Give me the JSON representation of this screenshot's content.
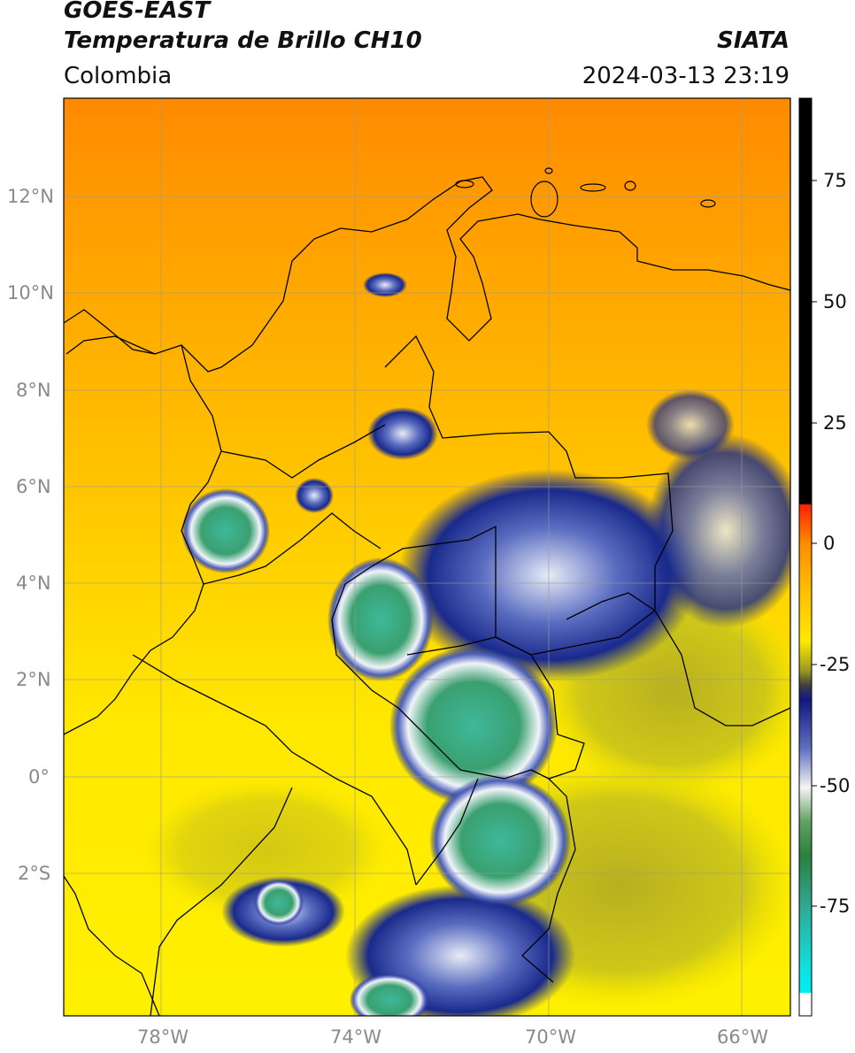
{
  "header": {
    "satellite": "GOES-EAST",
    "product": "Temperatura de Brillo CH10",
    "region": "Colombia",
    "agency": "SIATA",
    "datetime": "2024-03-13 23:19"
  },
  "map": {
    "lat_ticks": [
      "12°N",
      "10°N",
      "8°N",
      "6°N",
      "4°N",
      "2°N",
      "0°",
      "2°S"
    ],
    "lon_ticks": [
      "78°W",
      "74°W",
      "70°W",
      "66°W"
    ],
    "extent": {
      "lon_min": -80.0,
      "lon_max": -65.0,
      "lat_min": -5.0,
      "lat_max": 14.0
    },
    "colors": {
      "warm_top": "#ff8c00",
      "mid": "#ffc400",
      "low": "#ffe800",
      "cloud_blue": "#1a2a8c",
      "cloud_white": "#f0f4f8",
      "cloud_green": "#3aa070",
      "border": "#000000",
      "grid": "#999999"
    }
  },
  "colorbar": {
    "ticks": [
      "75",
      "50",
      "25",
      "0",
      "-25",
      "-50",
      "-75"
    ],
    "tick_values": [
      75,
      50,
      25,
      0,
      -25,
      -50,
      -75
    ],
    "range": [
      -95,
      90
    ]
  }
}
